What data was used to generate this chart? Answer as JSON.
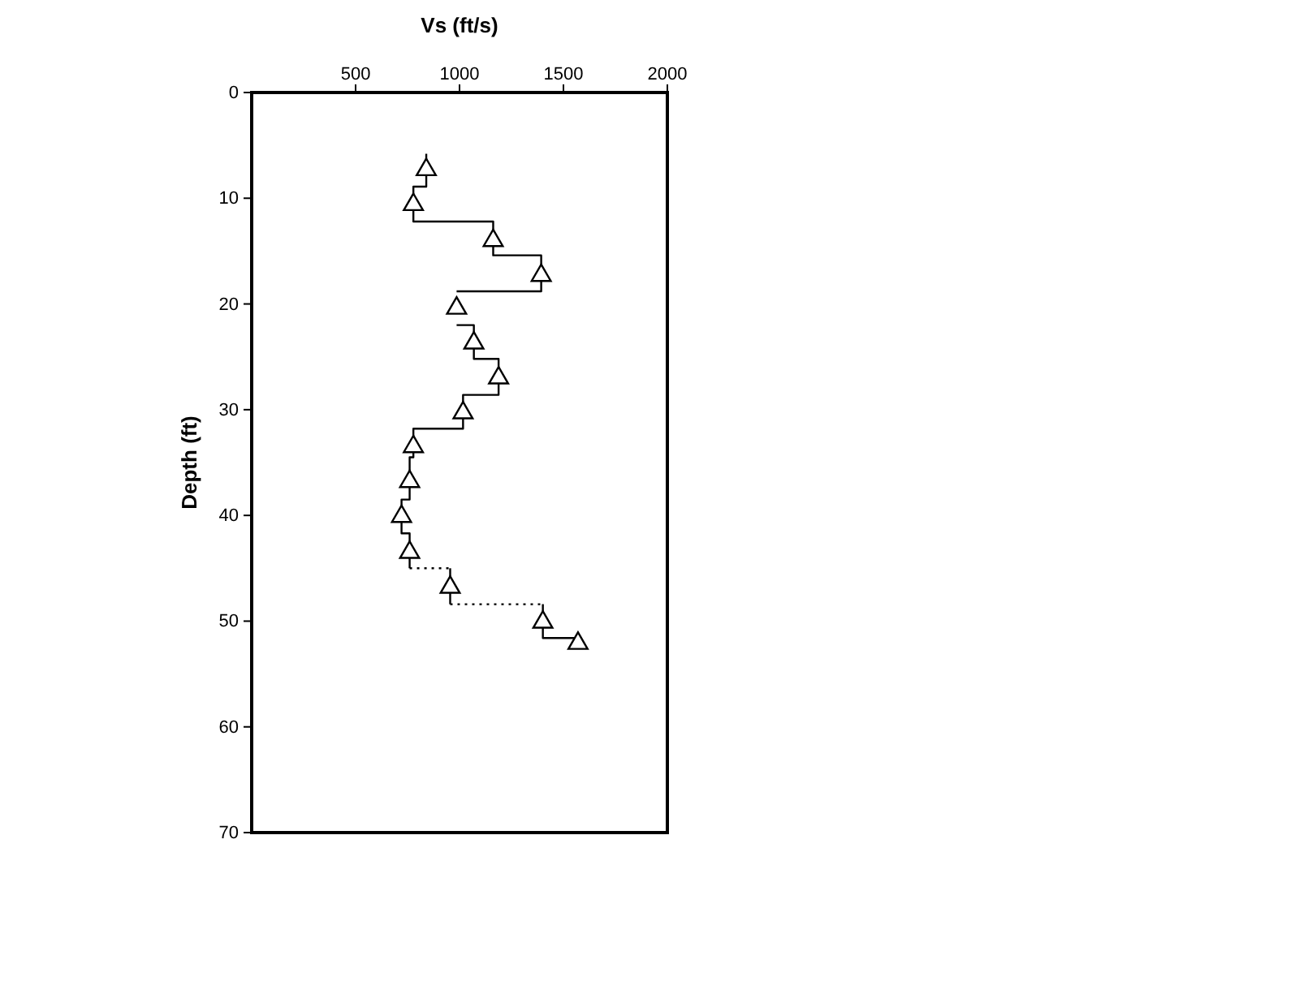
{
  "chart_data": {
    "type": "scatter",
    "xlabel": "Vs (ft/s)",
    "ylabel": "Depth (ft)",
    "xlim": [
      0,
      2000
    ],
    "xticks": [
      500,
      1000,
      1500,
      2000
    ],
    "ylim": [
      70,
      0
    ],
    "yticks": [
      0,
      10,
      20,
      30,
      40,
      50,
      60,
      70
    ],
    "grid": false,
    "series": [
      {
        "marker": "triangle",
        "color": "#000000",
        "x": [
          840,
          778,
          1162,
          1393,
          986,
          1069,
          1188,
          1017,
          778,
          760,
          721,
          760,
          955,
          1401,
          1570
        ],
        "values": [
          7.3,
          10.6,
          14.0,
          17.3,
          20.4,
          23.7,
          27.0,
          30.3,
          33.5,
          36.8,
          40.1,
          43.5,
          46.8,
          50.1,
          52.1
        ]
      },
      {
        "type": "line",
        "line_style": "solid",
        "color": "#000000",
        "x": [
          840,
          840,
          778,
          778,
          1162,
          1162,
          1393,
          1393,
          986
        ],
        "values": [
          5.8,
          8.9,
          8.9,
          12.2,
          12.2,
          15.4,
          15.4,
          18.8,
          18.8
        ]
      },
      {
        "type": "line",
        "line_style": "solid",
        "color": "#000000",
        "x": [
          986,
          1069,
          1069,
          1188,
          1188,
          1017,
          1017,
          778,
          778,
          760,
          760,
          721,
          721,
          760,
          760
        ],
        "values": [
          22.0,
          22.0,
          25.2,
          25.2,
          28.6,
          28.6,
          31.8,
          31.8,
          34.5,
          34.5,
          38.5,
          38.5,
          41.7,
          41.7,
          45.0
        ]
      },
      {
        "type": "line",
        "line_style": "dotted",
        "color": "#000000",
        "x": [
          760,
          955
        ],
        "values": [
          45.0,
          45.0
        ]
      },
      {
        "type": "line",
        "line_style": "solid",
        "color": "#000000",
        "x": [
          955,
          955
        ],
        "values": [
          45.0,
          48.4
        ]
      },
      {
        "type": "line",
        "line_style": "dotted",
        "color": "#000000",
        "x": [
          955,
          1401
        ],
        "values": [
          48.4,
          48.4
        ]
      },
      {
        "type": "line",
        "line_style": "solid",
        "color": "#000000",
        "x": [
          1401,
          1401,
          1570
        ],
        "values": [
          48.4,
          51.6,
          51.6
        ]
      }
    ]
  }
}
